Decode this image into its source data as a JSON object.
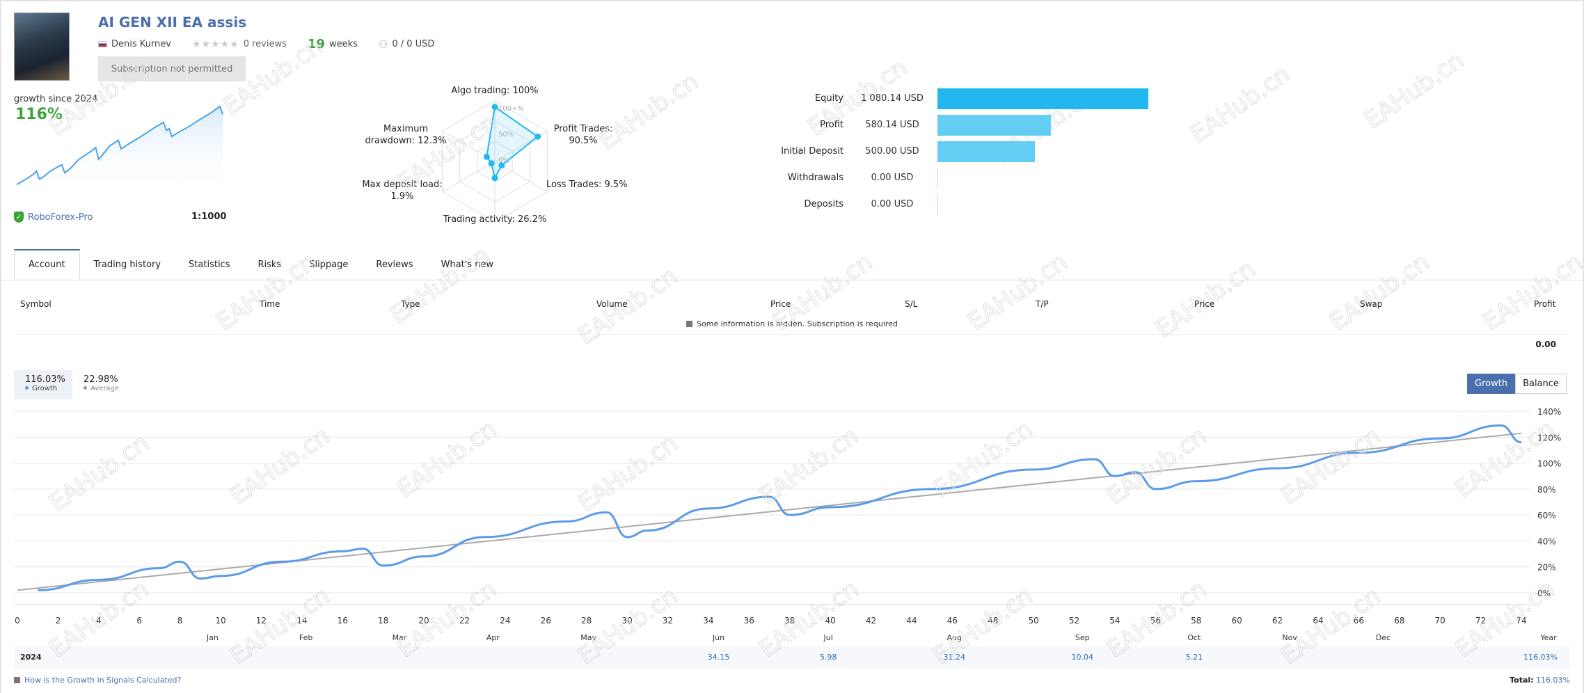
{
  "signal": {
    "title": "AI GEN XII EA assis",
    "author": "Denis Kurnev",
    "stars": "★★★★★",
    "reviews": "0 reviews",
    "weeks_num": "19",
    "weeks_label": "weeks",
    "subscribers": "0 / 0 USD",
    "subscribe_button": "Subscription not permitted"
  },
  "growth": {
    "label": "growth since 2024",
    "value": "116%"
  },
  "broker": {
    "name": "RoboForex-Pro",
    "leverage": "1:1000"
  },
  "radar": {
    "labels": {
      "algo": "Algo trading: 100%",
      "profit": [
        "Profit Trades:",
        "90.5%"
      ],
      "loss": "Loss Trades: 9.5%",
      "activity": "Trading activity: 26.2%",
      "load": [
        "Max deposit load:",
        "1.9%"
      ],
      "drawdown": [
        "Maximum",
        "drawdown: 12.3%"
      ]
    },
    "scale": [
      "100+%",
      "50%",
      "0%"
    ],
    "values": [
      100,
      90.5,
      9.5,
      26.2,
      1.9,
      12.3
    ]
  },
  "balances": [
    {
      "label": "Equity",
      "value": "1 080.14 USD",
      "amount": 1080.14,
      "color": "#22b7ef"
    },
    {
      "label": "Profit",
      "value": "580.14 USD",
      "amount": 580.14,
      "color": "#63cdf3"
    },
    {
      "label": "Initial Deposit",
      "value": "500.00 USD",
      "amount": 500,
      "color": "#63cdf3"
    },
    {
      "label": "Withdrawals",
      "value": "0.00 USD",
      "amount": 0,
      "color": "#63cdf3"
    },
    {
      "label": "Deposits",
      "value": "0.00 USD",
      "amount": 0,
      "color": "#63cdf3"
    }
  ],
  "tabs": [
    "Account",
    "Trading history",
    "Statistics",
    "Risks",
    "Slippage",
    "Reviews",
    "What's new"
  ],
  "table": {
    "columns": [
      "Symbol",
      "Time",
      "Type",
      "Volume",
      "Price",
      "S/L",
      "T/P",
      "Price",
      "Swap",
      "Profit"
    ],
    "hidden_msg": "Some information is hidden. Subscription is required",
    "total": "0.00"
  },
  "legend": {
    "growth_value": "116.03%",
    "growth_label": "Growth",
    "average_value": "22.98%",
    "average_label": "Average"
  },
  "chart_buttons": [
    "Growth",
    "Balance"
  ],
  "chart_data": {
    "type": "line",
    "ylabel": "",
    "xlabel": "",
    "ylim": [
      -5,
      145
    ],
    "xlim": [
      0,
      74
    ],
    "yticks": [
      "140%",
      "120%",
      "100%",
      "80%",
      "60%",
      "40%",
      "20%",
      "0%"
    ],
    "ytick_values": [
      140,
      120,
      100,
      80,
      60,
      40,
      20,
      0
    ],
    "xticks": [
      0,
      2,
      4,
      6,
      8,
      10,
      12,
      14,
      16,
      18,
      20,
      22,
      24,
      26,
      28,
      30,
      32,
      34,
      36,
      38,
      40,
      42,
      44,
      46,
      48,
      50,
      52,
      54,
      56,
      58,
      60,
      62,
      64,
      66,
      68,
      70,
      72,
      74
    ],
    "months": [
      {
        "label": "Jan",
        "week": 9.6
      },
      {
        "label": "Feb",
        "week": 14.2
      },
      {
        "label": "Mar",
        "week": 18.8
      },
      {
        "label": "Apr",
        "week": 23.4
      },
      {
        "label": "May",
        "week": 28.1
      },
      {
        "label": "Jun",
        "week": 34.5
      },
      {
        "label": "Jul",
        "week": 39.9
      },
      {
        "label": "Aug",
        "week": 46.1
      },
      {
        "label": "Sep",
        "week": 52.4
      },
      {
        "label": "Oct",
        "week": 57.9
      },
      {
        "label": "Nov",
        "week": 62.6
      },
      {
        "label": "Dec",
        "week": 67.2
      }
    ],
    "series": [
      {
        "name": "Growth",
        "color": "#5b9be8",
        "x": [
          1,
          4,
          7,
          8,
          9,
          10,
          13,
          16,
          17,
          18,
          20,
          23,
          27,
          29,
          30,
          31,
          34,
          37,
          38,
          40,
          45,
          50,
          53,
          54,
          55,
          56,
          58,
          62,
          66,
          70,
          73,
          74
        ],
        "y": [
          2,
          10,
          19,
          24,
          11,
          13,
          24,
          32,
          34,
          21,
          28,
          43,
          55,
          62,
          43,
          48,
          65,
          74,
          60,
          66,
          80,
          95,
          103,
          90,
          93,
          80,
          86,
          96,
          108,
          119,
          129,
          116
        ]
      },
      {
        "name": "Average",
        "color": "#aaaaaa",
        "x": [
          0,
          74
        ],
        "y": [
          2,
          123
        ]
      }
    ]
  },
  "year_row": {
    "year": "2024",
    "cells": [
      {
        "month": "Jun",
        "value": "34.15"
      },
      {
        "month": "Jul",
        "value": "5.98"
      },
      {
        "month": "Aug",
        "value": "31.24"
      },
      {
        "month": "Sep",
        "value": "10.04"
      },
      {
        "month": "Oct",
        "value": "5.21"
      }
    ],
    "year_label": "Year",
    "year_total": "116.03%"
  },
  "footer": {
    "link": "How is the Growth in Signals Calculated?",
    "total_label": "Total:",
    "total_value": "116.03%"
  },
  "watermark": "EAHub.cn"
}
